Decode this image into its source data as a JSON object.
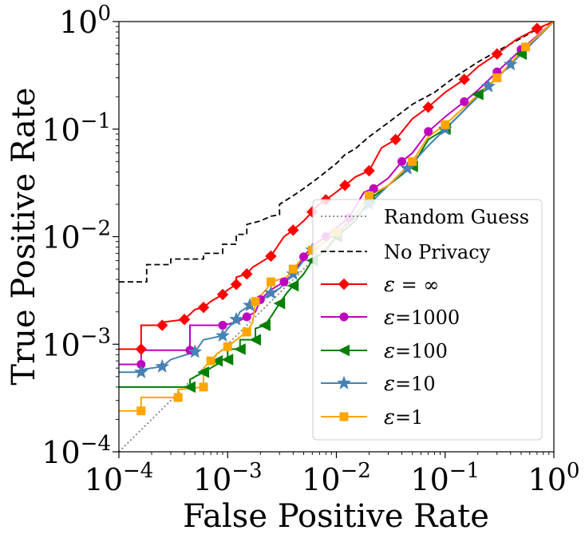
{
  "chart_data": {
    "type": "line",
    "title": "",
    "xlabel": "False Positive Rate",
    "ylabel": "True Positive Rate",
    "xscale": "log",
    "yscale": "log",
    "xlim": [
      0.0001,
      1
    ],
    "ylim": [
      0.0001,
      1
    ],
    "x_ticks": [
      {
        "base": "10",
        "exp": "−4",
        "value": 0.0001
      },
      {
        "base": "10",
        "exp": "−3",
        "value": 0.001
      },
      {
        "base": "10",
        "exp": "−2",
        "value": 0.01
      },
      {
        "base": "10",
        "exp": "−1",
        "value": 0.1
      },
      {
        "base": "10",
        "exp": "0",
        "value": 1
      }
    ],
    "y_ticks": [
      {
        "base": "10",
        "exp": "−4",
        "value": 0.0001
      },
      {
        "base": "10",
        "exp": "−3",
        "value": 0.001
      },
      {
        "base": "10",
        "exp": "−2",
        "value": 0.01
      },
      {
        "base": "10",
        "exp": "−1",
        "value": 0.1
      },
      {
        "base": "10",
        "exp": "0",
        "value": 1
      }
    ],
    "legend_position": "lower-right",
    "series": [
      {
        "name": "Random Guess",
        "label_prefix": "",
        "label_suffix": "Random Guess",
        "color": "#808080",
        "dash": "dotted",
        "marker": "none",
        "points": [
          [
            0.0001,
            0.0001
          ],
          [
            1,
            1
          ]
        ]
      },
      {
        "name": "No Privacy",
        "label_prefix": "",
        "label_suffix": "No Privacy",
        "color": "#000000",
        "dash": "dashed",
        "marker": "none",
        "points": [
          [
            0.0001,
            0.0038
          ],
          [
            0.00018,
            0.0038
          ],
          [
            0.00018,
            0.0055
          ],
          [
            0.0003,
            0.0055
          ],
          [
            0.0003,
            0.0062
          ],
          [
            0.0006,
            0.0062
          ],
          [
            0.0006,
            0.007
          ],
          [
            0.0009,
            0.007
          ],
          [
            0.0009,
            0.0085
          ],
          [
            0.0012,
            0.0085
          ],
          [
            0.0012,
            0.0105
          ],
          [
            0.0015,
            0.0105
          ],
          [
            0.0015,
            0.013
          ],
          [
            0.002,
            0.014
          ],
          [
            0.0025,
            0.0155
          ],
          [
            0.003,
            0.016
          ],
          [
            0.003,
            0.02
          ],
          [
            0.004,
            0.024
          ],
          [
            0.005,
            0.028
          ],
          [
            0.007,
            0.036
          ],
          [
            0.01,
            0.048
          ],
          [
            0.012,
            0.058
          ],
          [
            0.015,
            0.066
          ],
          [
            0.02,
            0.085
          ],
          [
            0.03,
            0.115
          ],
          [
            0.05,
            0.17
          ],
          [
            0.08,
            0.22
          ],
          [
            0.12,
            0.3
          ],
          [
            0.2,
            0.42
          ],
          [
            0.3,
            0.53
          ],
          [
            0.5,
            0.7
          ],
          [
            0.7,
            0.85
          ],
          [
            1,
            1
          ]
        ]
      },
      {
        "name": "ε = ∞",
        "label_prefix": "ε",
        "label_suffix": " = ∞",
        "color": "#ff0000",
        "dash": "solid",
        "marker": "diamond",
        "points": [
          [
            0.0001,
            0.0009
          ],
          [
            0.00016,
            0.0009
          ],
          [
            0.00016,
            0.0015
          ],
          [
            0.00025,
            0.0015
          ],
          [
            0.00025,
            0.0016
          ],
          [
            0.0004,
            0.0017
          ],
          [
            0.0005,
            0.0021
          ],
          [
            0.0006,
            0.0022
          ],
          [
            0.0007,
            0.0025
          ],
          [
            0.0009,
            0.0029
          ],
          [
            0.001,
            0.0032
          ],
          [
            0.0012,
            0.0036
          ],
          [
            0.0012,
            0.0042
          ],
          [
            0.0015,
            0.0045
          ],
          [
            0.0017,
            0.0052
          ],
          [
            0.0025,
            0.0066
          ],
          [
            0.0033,
            0.01
          ],
          [
            0.004,
            0.0115
          ],
          [
            0.005,
            0.014
          ],
          [
            0.006,
            0.017
          ],
          [
            0.0065,
            0.019
          ],
          [
            0.008,
            0.022
          ],
          [
            0.01,
            0.026
          ],
          [
            0.012,
            0.03
          ],
          [
            0.015,
            0.036
          ],
          [
            0.02,
            0.041
          ],
          [
            0.026,
            0.067
          ],
          [
            0.035,
            0.08
          ],
          [
            0.05,
            0.125
          ],
          [
            0.07,
            0.16
          ],
          [
            0.1,
            0.22
          ],
          [
            0.15,
            0.29
          ],
          [
            0.2,
            0.38
          ],
          [
            0.3,
            0.5
          ],
          [
            0.45,
            0.68
          ],
          [
            0.7,
            0.86
          ],
          [
            1,
            1
          ]
        ]
      },
      {
        "name": "ε=1000",
        "label_prefix": "ε",
        "label_suffix": "=1000",
        "color": "#c000c0",
        "dash": "solid",
        "marker": "circle",
        "points": [
          [
            0.0001,
            0.00065
          ],
          [
            0.00016,
            0.00065
          ],
          [
            0.00016,
            0.00088
          ],
          [
            0.00045,
            0.00088
          ],
          [
            0.00045,
            0.0015
          ],
          [
            0.0009,
            0.0015
          ],
          [
            0.0012,
            0.0016
          ],
          [
            0.0015,
            0.0018
          ],
          [
            0.0018,
            0.002
          ],
          [
            0.002,
            0.0026
          ],
          [
            0.0025,
            0.0032
          ],
          [
            0.0033,
            0.0038
          ],
          [
            0.004,
            0.0045
          ],
          [
            0.005,
            0.0065
          ],
          [
            0.006,
            0.0082
          ],
          [
            0.008,
            0.01
          ],
          [
            0.01,
            0.012
          ],
          [
            0.013,
            0.015
          ],
          [
            0.018,
            0.026
          ],
          [
            0.022,
            0.028
          ],
          [
            0.03,
            0.035
          ],
          [
            0.04,
            0.05
          ],
          [
            0.05,
            0.06
          ],
          [
            0.07,
            0.095
          ],
          [
            0.1,
            0.13
          ],
          [
            0.15,
            0.18
          ],
          [
            0.2,
            0.23
          ],
          [
            0.3,
            0.34
          ],
          [
            0.5,
            0.55
          ],
          [
            1,
            1
          ]
        ]
      },
      {
        "name": "ε=100",
        "label_prefix": "ε",
        "label_suffix": "=100",
        "color": "#008000",
        "dash": "solid",
        "marker": "triangle-left",
        "points": [
          [
            0.0001,
            0.0004
          ],
          [
            0.00045,
            0.0004
          ],
          [
            0.00045,
            0.00047
          ],
          [
            0.0006,
            0.00055
          ],
          [
            0.0008,
            0.00065
          ],
          [
            0.0008,
            0.0007
          ],
          [
            0.0009,
            0.00072
          ],
          [
            0.001,
            0.00072
          ],
          [
            0.001,
            0.0009
          ],
          [
            0.0013,
            0.0009
          ],
          [
            0.0013,
            0.0011
          ],
          [
            0.0018,
            0.0011
          ],
          [
            0.0018,
            0.0014
          ],
          [
            0.0022,
            0.0015
          ],
          [
            0.0025,
            0.0018
          ],
          [
            0.003,
            0.0024
          ],
          [
            0.0035,
            0.003
          ],
          [
            0.004,
            0.0035
          ],
          [
            0.005,
            0.0045
          ],
          [
            0.006,
            0.006
          ],
          [
            0.008,
            0.0075
          ],
          [
            0.01,
            0.01
          ],
          [
            0.015,
            0.014
          ],
          [
            0.02,
            0.022
          ],
          [
            0.03,
            0.03
          ],
          [
            0.05,
            0.045
          ],
          [
            0.07,
            0.08
          ],
          [
            0.1,
            0.1
          ],
          [
            0.15,
            0.15
          ],
          [
            0.2,
            0.21
          ],
          [
            0.3,
            0.3
          ],
          [
            0.5,
            0.5
          ],
          [
            1,
            1
          ]
        ]
      },
      {
        "name": "ε=10",
        "label_prefix": "ε",
        "label_suffix": "=10",
        "color": "#4682b4",
        "dash": "solid",
        "marker": "star",
        "points": [
          [
            0.0001,
            0.00055
          ],
          [
            0.00016,
            0.00055
          ],
          [
            0.00016,
            0.00058
          ],
          [
            0.00025,
            0.00062
          ],
          [
            0.0003,
            0.00072
          ],
          [
            0.0005,
            0.00085
          ],
          [
            0.0006,
            0.0011
          ],
          [
            0.0009,
            0.0012
          ],
          [
            0.001,
            0.0014
          ],
          [
            0.0012,
            0.0017
          ],
          [
            0.0013,
            0.002
          ],
          [
            0.0016,
            0.0023
          ],
          [
            0.002,
            0.0025
          ],
          [
            0.0025,
            0.003
          ],
          [
            0.003,
            0.0033
          ],
          [
            0.004,
            0.0045
          ],
          [
            0.005,
            0.006
          ],
          [
            0.006,
            0.0075
          ],
          [
            0.008,
            0.009
          ],
          [
            0.01,
            0.011
          ],
          [
            0.015,
            0.015
          ],
          [
            0.02,
            0.02
          ],
          [
            0.03,
            0.03
          ],
          [
            0.045,
            0.043
          ],
          [
            0.07,
            0.07
          ],
          [
            0.1,
            0.1
          ],
          [
            0.15,
            0.15
          ],
          [
            0.25,
            0.25
          ],
          [
            0.4,
            0.4
          ],
          [
            1,
            1
          ]
        ]
      },
      {
        "name": "ε=1",
        "label_prefix": "ε",
        "label_suffix": "=1",
        "color": "#ffa500",
        "dash": "solid",
        "marker": "square",
        "points": [
          [
            0.0001,
            0.00024
          ],
          [
            0.00016,
            0.00024
          ],
          [
            0.00016,
            0.00032
          ],
          [
            0.00035,
            0.00032
          ],
          [
            0.00035,
            0.00038
          ],
          [
            0.0006,
            0.0004
          ],
          [
            0.0006,
            0.0006
          ],
          [
            0.0007,
            0.0007
          ],
          [
            0.0008,
            0.00082
          ],
          [
            0.001,
            0.00095
          ],
          [
            0.0012,
            0.0011
          ],
          [
            0.0015,
            0.0013
          ],
          [
            0.0017,
            0.0016
          ],
          [
            0.0018,
            0.0025
          ],
          [
            0.0023,
            0.0033
          ],
          [
            0.0025,
            0.0038
          ],
          [
            0.0035,
            0.0042
          ],
          [
            0.004,
            0.005
          ],
          [
            0.005,
            0.0065
          ],
          [
            0.006,
            0.0075
          ],
          [
            0.008,
            0.009
          ],
          [
            0.01,
            0.011
          ],
          [
            0.015,
            0.016
          ],
          [
            0.02,
            0.024
          ],
          [
            0.03,
            0.03
          ],
          [
            0.05,
            0.05
          ],
          [
            0.07,
            0.085
          ],
          [
            0.1,
            0.11
          ],
          [
            0.15,
            0.16
          ],
          [
            0.3,
            0.3
          ],
          [
            0.55,
            0.58
          ],
          [
            1,
            1
          ]
        ]
      }
    ]
  }
}
